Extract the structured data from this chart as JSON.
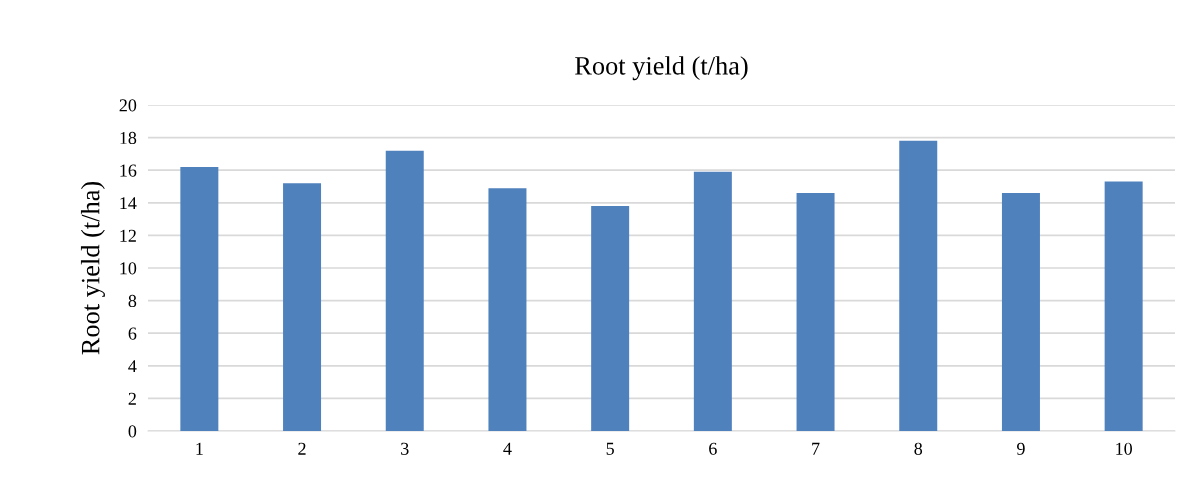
{
  "chart_data": {
    "type": "bar",
    "title": "Root yield (t/ha)",
    "ylabel": "Root yield (t/ha)",
    "categories": [
      "1",
      "2",
      "3",
      "4",
      "5",
      "6",
      "7",
      "8",
      "9",
      "10"
    ],
    "values": [
      16.2,
      15.2,
      17.2,
      14.9,
      13.8,
      15.9,
      14.6,
      17.8,
      14.6,
      15.3
    ],
    "color": "#4f81bd",
    "ylim": [
      0,
      20
    ],
    "yticks": [
      0,
      2,
      4,
      6,
      8,
      10,
      12,
      14,
      16,
      18,
      20
    ],
    "grid": "y",
    "legend": false
  }
}
